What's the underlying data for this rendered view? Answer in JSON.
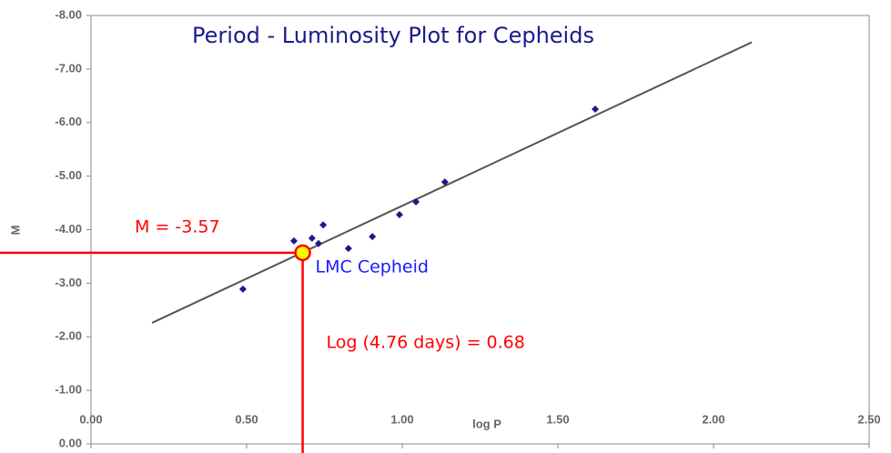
{
  "chart_data": {
    "type": "scatter",
    "title": "Period - Luminosity Plot for Cepheids",
    "x_label": "log P",
    "y_label": "M",
    "series": [
      {
        "name": "Cepheids",
        "color": "#1a1a8c",
        "x": [
          0.488,
          0.652,
          0.71,
          0.731,
          0.746,
          0.827,
          0.904,
          0.991,
          1.044,
          1.137,
          1.62
        ],
        "values": [
          -2.89,
          -3.79,
          -3.84,
          -3.74,
          -4.09,
          -3.65,
          -3.87,
          -4.28,
          -4.52,
          -4.89,
          -6.25
        ]
      }
    ],
    "trendline": {
      "color": "#555555",
      "x": [
        0.196,
        2.123
      ],
      "values": [
        -2.26,
        -7.5
      ]
    },
    "highlight": {
      "x": 0.68,
      "value": -3.57,
      "label": "LMC Cepheid",
      "fill": "#ffff00",
      "color": "#ff0000",
      "y_annotation": "M = -3.57",
      "x_annotation": "Log (4.76 days) = 0.68"
    },
    "xlim": [
      0,
      2.5
    ],
    "xticks": [
      {
        "value": 0,
        "label": "0.00"
      },
      {
        "value": 0.5,
        "label": "0.50"
      },
      {
        "value": 1,
        "label": "1.00"
      },
      {
        "value": 1.5,
        "label": "1.50"
      },
      {
        "value": 2,
        "label": "2.00"
      },
      {
        "value": 2.5,
        "label": "2.50"
      }
    ],
    "ylim": [
      0,
      -8
    ],
    "yticks": [
      {
        "value": 0,
        "label": "0.00"
      },
      {
        "value": -1,
        "label": "-1.00"
      },
      {
        "value": -2,
        "label": "-2.00"
      },
      {
        "value": -3,
        "label": "-3.00"
      },
      {
        "value": -4,
        "label": "-4.00"
      },
      {
        "value": -5,
        "label": "-5.00"
      },
      {
        "value": -6,
        "label": "-6.00"
      },
      {
        "value": -7,
        "label": "-7.00"
      },
      {
        "value": -8,
        "label": "-8.00"
      }
    ]
  }
}
